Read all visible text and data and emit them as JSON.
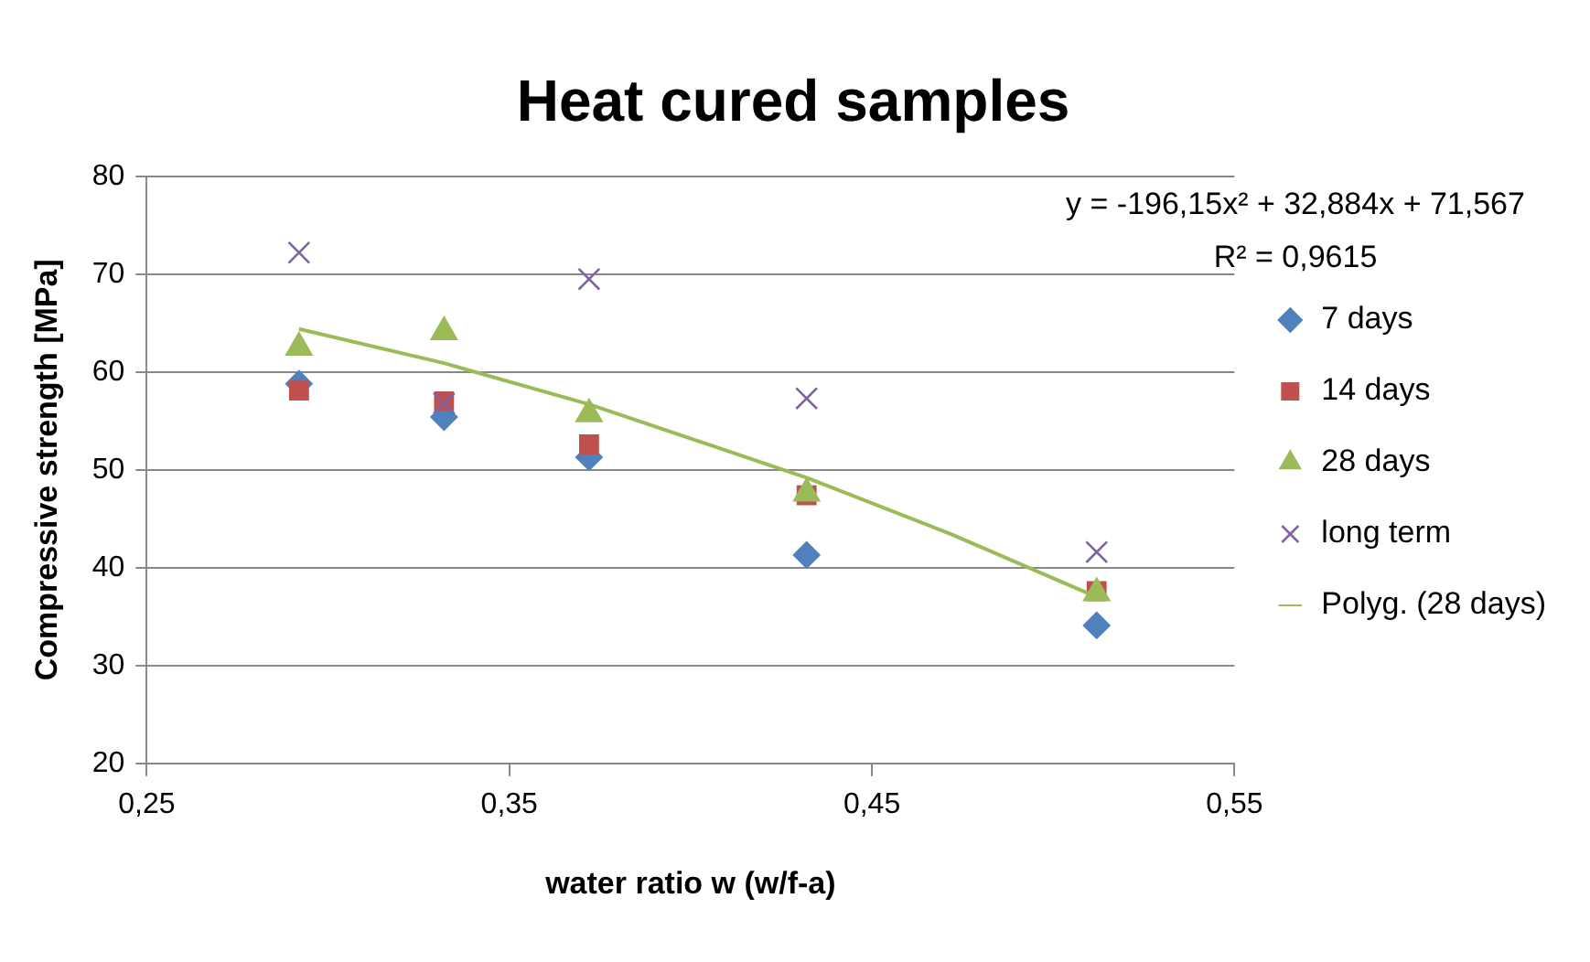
{
  "chart_data": {
    "type": "scatter",
    "title": "Heat cured samples",
    "xlabel": "water ratio w (w/f-a)",
    "ylabel": "Compressive strength [MPa]",
    "xlim": [
      0.25,
      0.55
    ],
    "xticks": [
      {
        "value": 0.25,
        "label": "0,25"
      },
      {
        "value": 0.35,
        "label": "0,35"
      },
      {
        "value": 0.45,
        "label": "0,45"
      },
      {
        "value": 0.55,
        "label": "0,55"
      }
    ],
    "ylim": [
      20,
      80
    ],
    "yticks": [
      20,
      30,
      40,
      50,
      60,
      70,
      80
    ],
    "grid": "y",
    "legend": "right",
    "x": [
      0.292,
      0.332,
      0.372,
      0.432,
      0.512
    ],
    "series": [
      {
        "name": "7 days",
        "color": "#4f81bd",
        "marker": "diamond",
        "values": [
          58.8,
          55.4,
          51.3,
          41.3,
          34.1
        ]
      },
      {
        "name": "14 days",
        "color": "#c0504d",
        "marker": "square",
        "values": [
          58.1,
          57.0,
          52.6,
          47.4,
          37.6
        ]
      },
      {
        "name": "28 days",
        "color": "#9bbb59",
        "marker": "triangle",
        "values": [
          62.5,
          64.1,
          55.7,
          47.6,
          37.4
        ]
      },
      {
        "name": "long term",
        "color": "#8064a2",
        "marker": "cross",
        "values": [
          72.2,
          56.8,
          69.5,
          57.3,
          41.6
        ]
      },
      {
        "name": "Polyg. (28 days)",
        "type": "line",
        "color": "#9bbb59",
        "marker": "none",
        "line_style": "solid",
        "x": [
          0.292,
          0.332,
          0.372,
          0.432,
          0.472,
          0.512
        ],
        "values": [
          64.4,
          60.9,
          56.7,
          49.2,
          43.4,
          37.0
        ]
      }
    ],
    "annotations": [
      "y = -196,15x² + 32,884x + 71,567",
      "R² = 0,9615"
    ]
  }
}
